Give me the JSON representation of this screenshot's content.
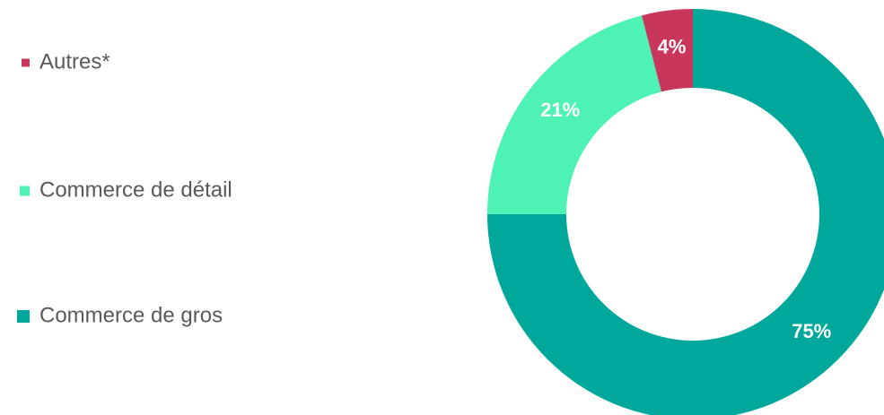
{
  "chart_data": {
    "type": "donut",
    "categories": [
      "Commerce de gros",
      "Commerce de détail",
      "Autres*"
    ],
    "values": [
      75,
      21,
      4
    ],
    "value_labels": [
      "75%",
      "21%",
      "4%"
    ],
    "colors": [
      "#00a89b",
      "#4ff2b5",
      "#c8375b"
    ],
    "legend": "left"
  }
}
